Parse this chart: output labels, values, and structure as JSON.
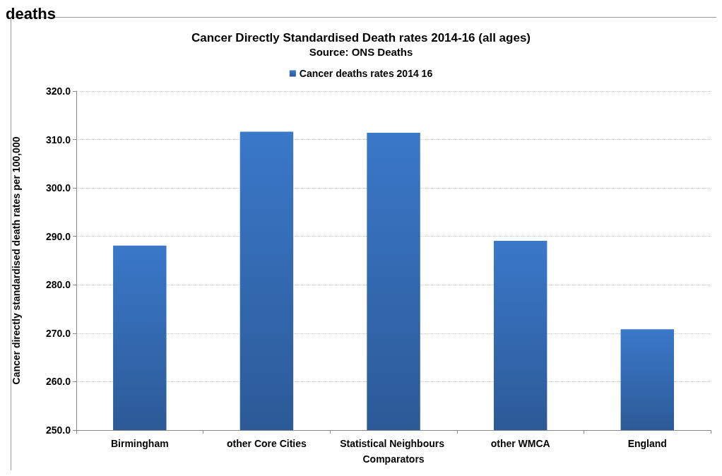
{
  "chart_data": {
    "type": "bar",
    "title": "Cancer Directly Standardised Death rates 2014-16 (all ages)",
    "subtitle": "Source: ONS Deaths",
    "ylabel": "Cancer directly standardised death rates per 100,000",
    "categories": [
      "Birmingham",
      "other Core Cities",
      "Statistical Neighbours Comparators",
      "other WMCA",
      "England"
    ],
    "series": [
      {
        "name": "Cancer deaths rates 2014 16",
        "color": "#3a78c9",
        "values": [
          288.1,
          311.6,
          311.4,
          289.1,
          270.8
        ]
      }
    ],
    "ylim": [
      250,
      320
    ],
    "yticks": [
      {
        "value": 250,
        "label": "250.0"
      },
      {
        "value": 260,
        "label": "260.0"
      },
      {
        "value": 270,
        "label": "270.0"
      },
      {
        "value": 280,
        "label": "280.0"
      },
      {
        "value": 290,
        "label": "290.0"
      },
      {
        "value": 300,
        "label": "300.0"
      },
      {
        "value": 310,
        "label": "310.0"
      },
      {
        "value": 320,
        "label": "320.0"
      }
    ],
    "grid": "y",
    "legend": "top",
    "annotations": [
      "deaths"
    ]
  }
}
